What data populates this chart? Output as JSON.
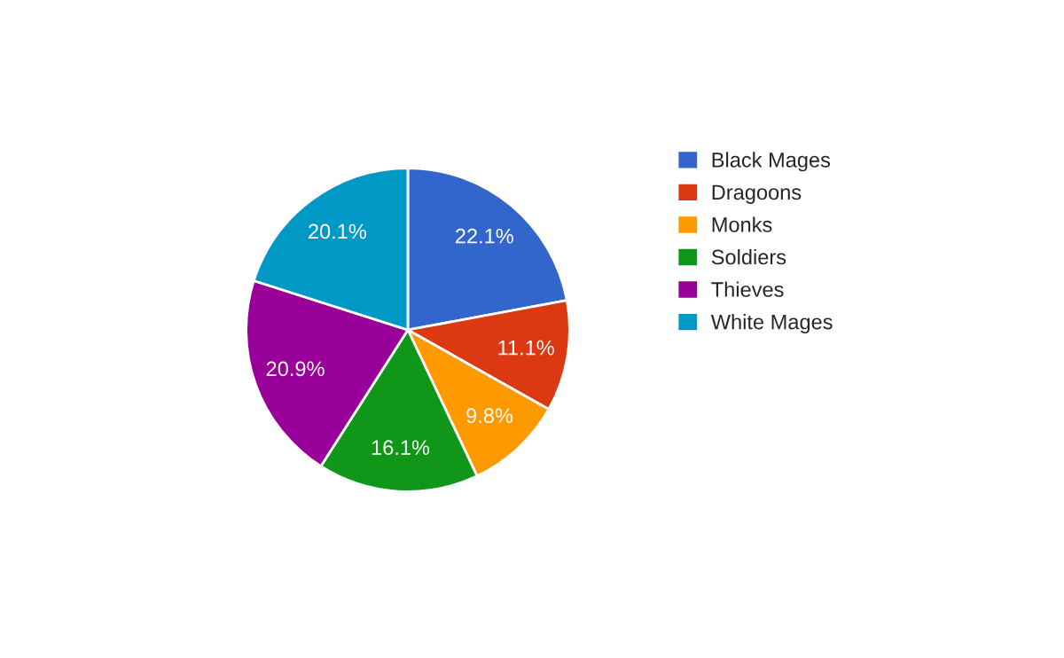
{
  "chart_data": {
    "type": "pie",
    "categories": [
      "Black Mages",
      "Dragoons",
      "Monks",
      "Soldiers",
      "Thieves",
      "White Mages"
    ],
    "values": [
      22.1,
      11.1,
      9.8,
      16.1,
      20.9,
      20.1
    ],
    "value_labels": [
      "22.1%",
      "11.1%",
      "9.8%",
      "16.1%",
      "20.9%",
      "20.1%"
    ],
    "colors": [
      "#3366cc",
      "#dc3912",
      "#ff9900",
      "#109618",
      "#990099",
      "#0099c6"
    ],
    "legend": "right"
  }
}
